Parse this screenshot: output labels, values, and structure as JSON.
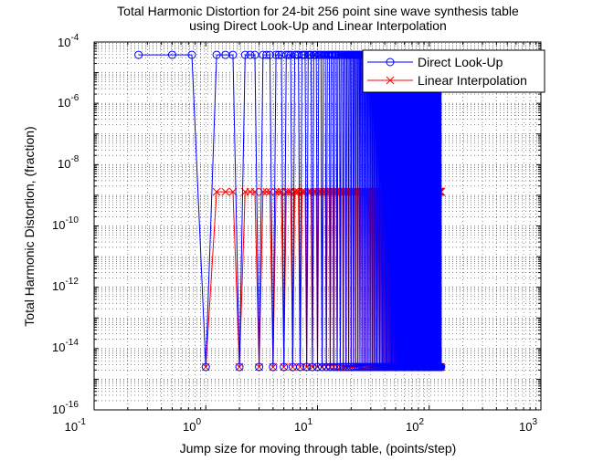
{
  "chart_data": {
    "type": "line",
    "title_lines": [
      "Total Harmonic Distortion for 24-bit 256 point sine wave synthesis table",
      "using Direct Look-Up and Linear Interpolation"
    ],
    "xlabel": "Jump size for moving through table, (points/step)",
    "ylabel": "Total Harmonic Distortion, (fraction)",
    "x_scale": "log",
    "y_scale": "log",
    "xlim": [
      0.1,
      1000
    ],
    "ylim": [
      1e-16,
      0.0001
    ],
    "grid": true,
    "legend_position": "top-right",
    "x_tick_labels": [
      {
        "base": "10",
        "exp": "-1",
        "value": 0.1
      },
      {
        "base": "10",
        "exp": "0",
        "value": 1
      },
      {
        "base": "10",
        "exp": "1",
        "value": 10
      },
      {
        "base": "10",
        "exp": "2",
        "value": 100
      },
      {
        "base": "10",
        "exp": "3",
        "value": 1000
      }
    ],
    "y_tick_labels": [
      {
        "base": "10",
        "exp": "-4",
        "value": 0.0001
      },
      {
        "base": "10",
        "exp": "-6",
        "value": 1e-06
      },
      {
        "base": "10",
        "exp": "-8",
        "value": 1e-08
      },
      {
        "base": "10",
        "exp": "-10",
        "value": 1e-10
      },
      {
        "base": "10",
        "exp": "-12",
        "value": 1e-12
      },
      {
        "base": "10",
        "exp": "-14",
        "value": 1e-14
      },
      {
        "base": "10",
        "exp": "-16",
        "value": 1e-16
      }
    ],
    "series": [
      {
        "name": "Direct Look-Up",
        "color": "#0000ff",
        "marker": "circle",
        "x_start": 0.25,
        "x_end": 128,
        "x_step": 0.25,
        "integer_jump_value": 2.5e-15,
        "noninteger_value": 3.8e-05
      },
      {
        "name": "Linear Interpolation",
        "color": "#ff0000",
        "marker": "x",
        "x_start": 1,
        "x_end": 128,
        "x_step": 0.25,
        "integer_jump_value": 2.5e-15,
        "noninteger_value": 1.3e-09
      }
    ]
  }
}
